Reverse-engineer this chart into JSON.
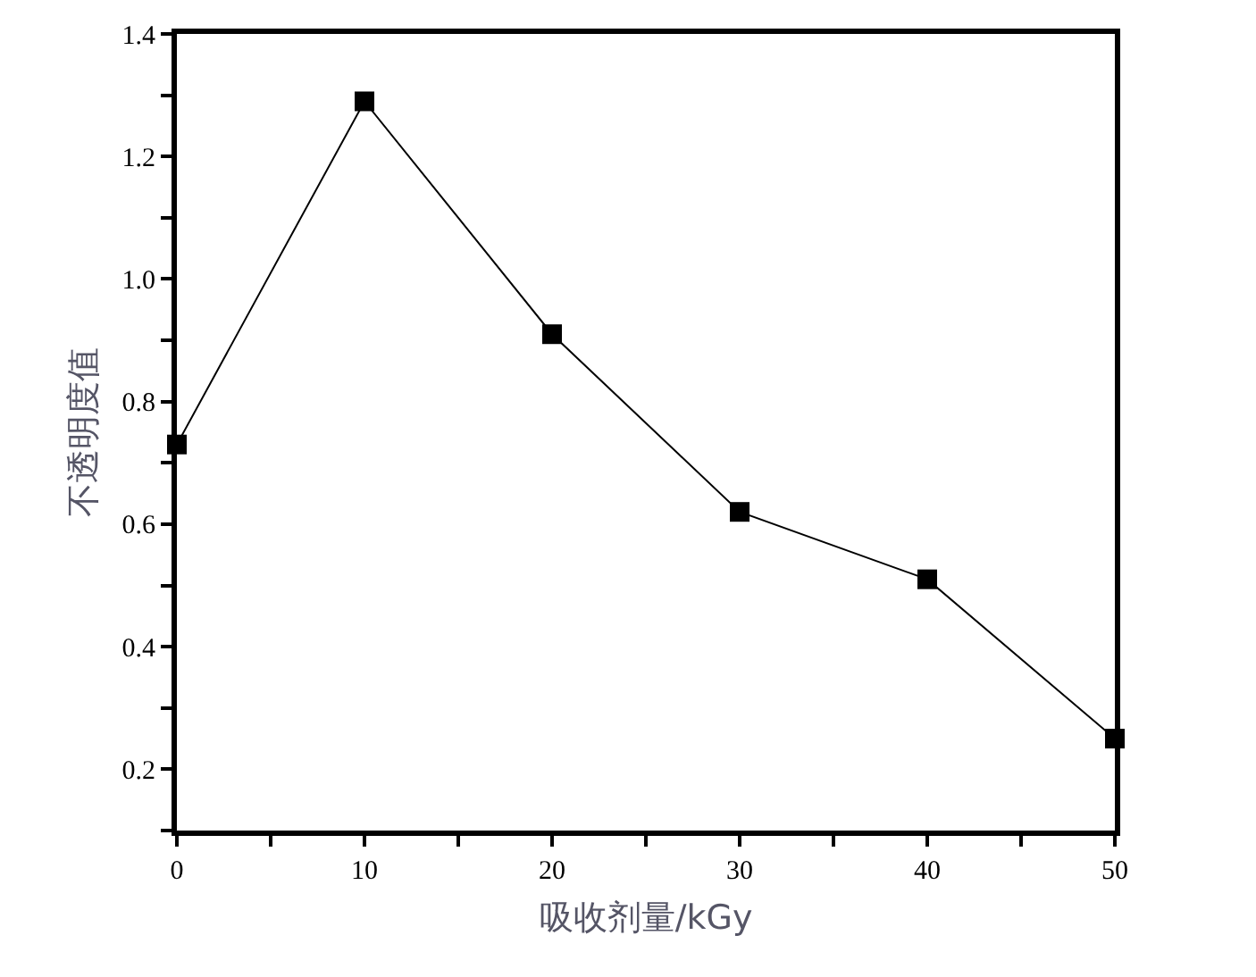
{
  "chart_data": {
    "type": "line",
    "xlabel": "吸收剂量/kGy",
    "ylabel": "不透明度值",
    "x": [
      0,
      10,
      20,
      30,
      40,
      50
    ],
    "series": [
      {
        "color": "#000000",
        "values": [
          0.73,
          1.29,
          0.91,
          0.62,
          0.51,
          0.25
        ]
      }
    ],
    "marker": "square",
    "line_style": "solid",
    "xlim": [
      0,
      50
    ],
    "ylim": [
      0.1,
      1.4
    ],
    "xticks": [
      0,
      {
        "value": 5,
        "label": null
      },
      10,
      {
        "value": 15,
        "label": null
      },
      20,
      {
        "value": 25,
        "label": null
      },
      30,
      {
        "value": 35,
        "label": null
      },
      40,
      {
        "value": 45,
        "label": null
      },
      50
    ],
    "yticks": [
      {
        "value": 0.1,
        "label": null
      },
      0.2,
      {
        "value": 0.3,
        "label": null
      },
      0.4,
      {
        "value": 0.5,
        "label": null
      },
      0.6,
      {
        "value": 0.7,
        "label": null
      },
      0.8,
      {
        "value": 0.9,
        "label": null
      },
      {
        "value": 1.0,
        "label": "1.0"
      },
      {
        "value": 1.1,
        "label": null
      },
      1.2,
      {
        "value": 1.3,
        "label": null
      },
      1.4
    ]
  }
}
